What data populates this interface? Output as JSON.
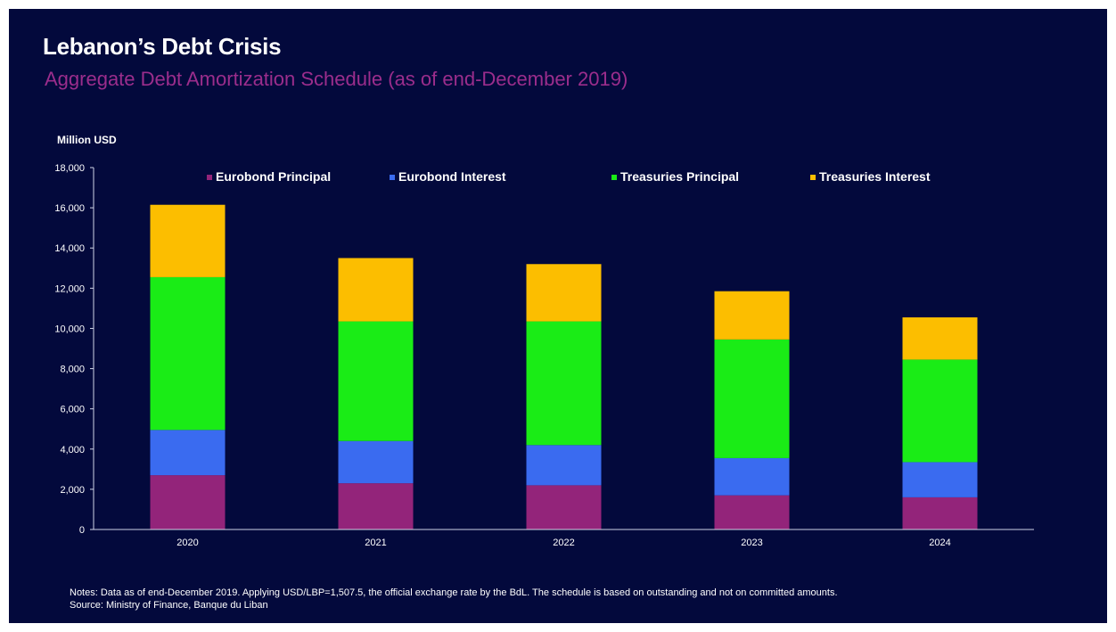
{
  "header": {
    "title": "Lebanon’s Debt Crisis",
    "subtitle": "Aggregate Debt Amortization Schedule (as of end-December 2019)"
  },
  "footer": {
    "notes": "Notes: Data as of end-December 2019. Applying USD/LBP=1,507.5, the official exchange rate by the BdL. The schedule is based on outstanding and not on committed amounts.",
    "source": "Source: Ministry of Finance, Banque du Liban"
  },
  "chart_data": {
    "type": "bar",
    "stacked": true,
    "title": "",
    "xlabel": "",
    "ylabel": "Million USD",
    "ylim": [
      0,
      18000
    ],
    "yticks": [
      "0",
      "2,000",
      "4,000",
      "6,000",
      "8,000",
      "10,000",
      "12,000",
      "14,000",
      "16,000",
      "18,000"
    ],
    "grid": false,
    "legend_position": "top",
    "categories": [
      "2020",
      "2021",
      "2022",
      "2023",
      "2024"
    ],
    "series": [
      {
        "name": "Eurobond Principal",
        "color": "#93247a",
        "values": [
          2700,
          2300,
          2200,
          1700,
          1600
        ]
      },
      {
        "name": "Eurobond Interest",
        "color": "#3a6bf0",
        "values": [
          2250,
          2100,
          2000,
          1850,
          1750
        ]
      },
      {
        "name": "Treasuries Principal",
        "color": "#1aec16",
        "values": [
          7600,
          5950,
          6150,
          5900,
          5100
        ]
      },
      {
        "name": "Treasuries Interest",
        "color": "#fcbe00",
        "values": [
          3600,
          3150,
          2850,
          2400,
          2100
        ]
      }
    ]
  }
}
